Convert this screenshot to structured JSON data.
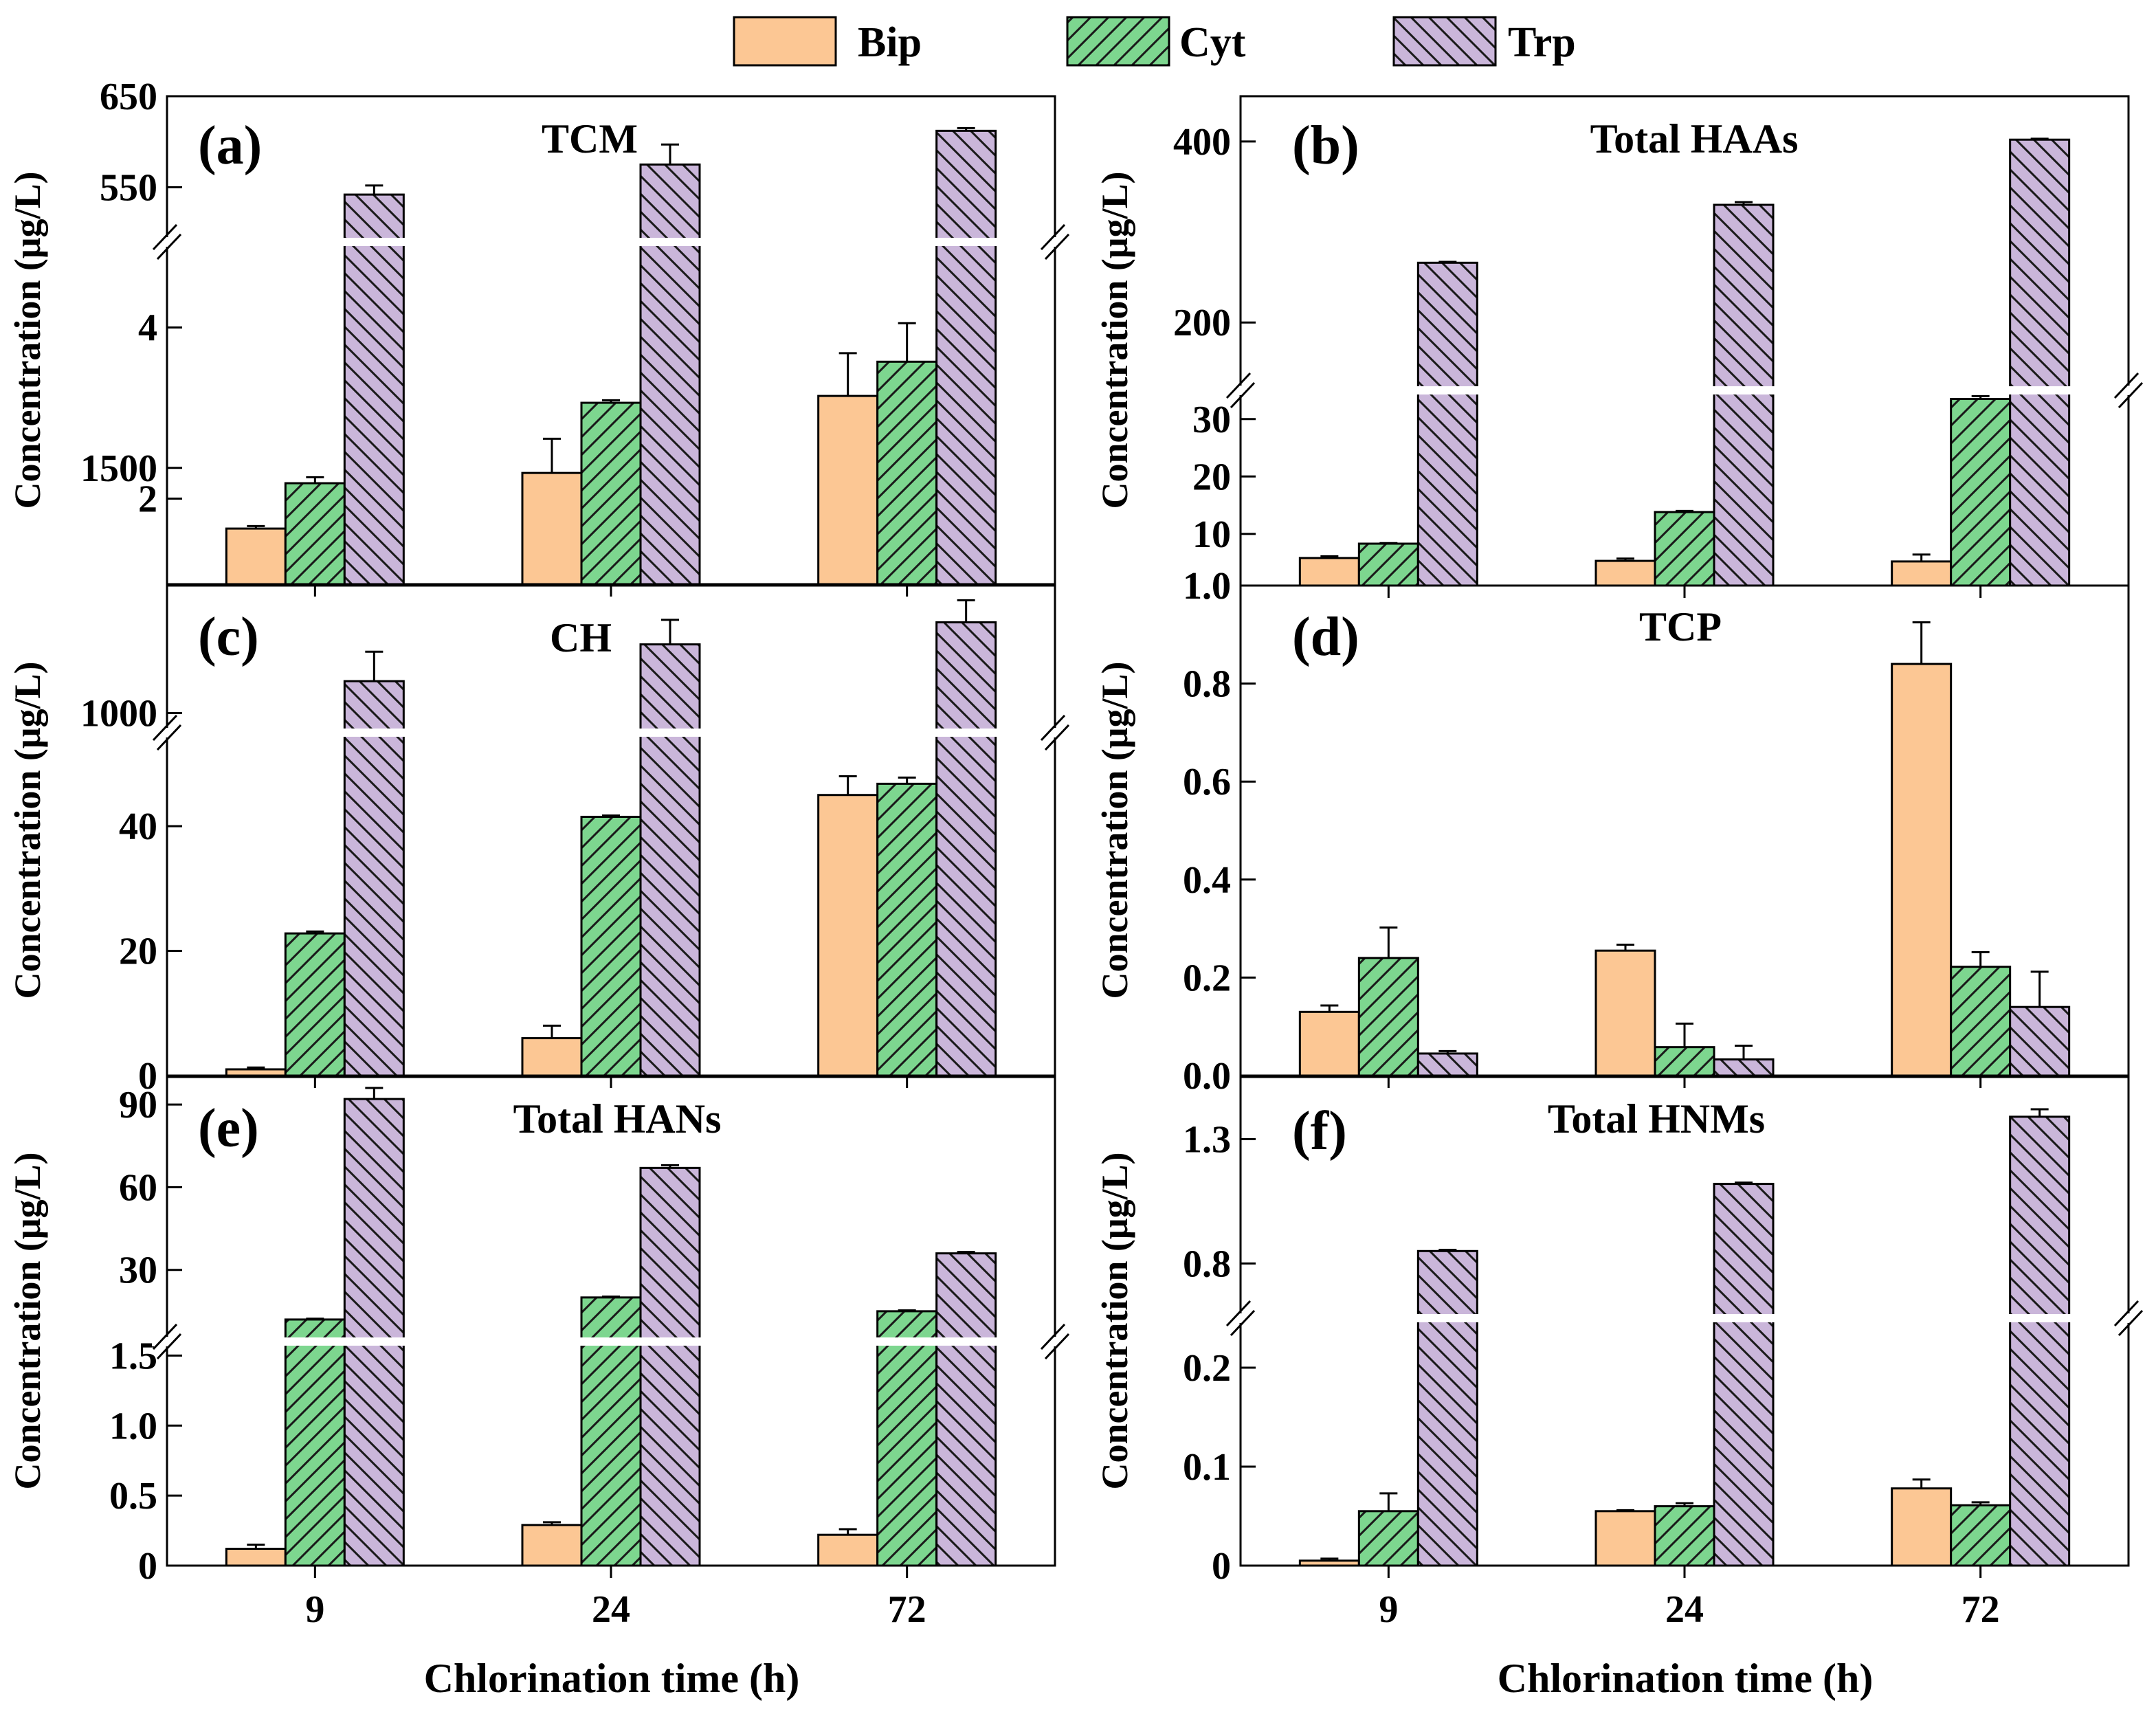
{
  "colors": {
    "Bip": "#FCC794",
    "Cyt": "#7DD68F",
    "Trp": "#CAB6DA",
    "hatch": "#1a1a1a",
    "axis": "#000000"
  },
  "legend": [
    {
      "name": "Bip",
      "pattern": "solid"
    },
    {
      "name": "Cyt",
      "pattern": "forward-hatch"
    },
    {
      "name": "Trp",
      "pattern": "back-hatch"
    }
  ],
  "figure": {
    "xlabel": "Chlorination time (h)",
    "ylabel": "Concentration (μg/L)"
  },
  "chart_data": [
    {
      "id": "a",
      "type": "bar",
      "letter": "(a)",
      "title": "TCM",
      "xlabel": "Chlorination time (h)",
      "ylabel": "Concentration (μg/L)",
      "categories": [
        "9",
        "24",
        "72"
      ],
      "series": [
        {
          "name": "Bip",
          "values": [
            1.65,
            2.3,
            3.2
          ],
          "errors": [
            0.03,
            0.4,
            0.5
          ]
        },
        {
          "name": "Cyt",
          "values": [
            2.18,
            3.12,
            3.6
          ],
          "errors": [
            0.07,
            0.03,
            0.45
          ]
        },
        {
          "name": "Trp",
          "values": [
            542,
            575,
            612
          ],
          "errors": [
            10,
            22,
            3
          ]
        }
      ],
      "axis_break": true,
      "lower_range": [
        1.0,
        5.0
      ],
      "lower_ticks": [
        {
          "v": 2,
          "label": "2"
        },
        {
          "v": 4,
          "label": "4"
        }
      ],
      "upper_range": [
        490,
        650
      ],
      "upper_ticks": [
        {
          "v": 550,
          "label": "550"
        },
        {
          "v": 650,
          "label": "650"
        }
      ]
    },
    {
      "id": "b",
      "type": "bar",
      "letter": "(b)",
      "title": "Total HAAs",
      "xlabel": "Chlorination time (h)",
      "ylabel": "Concentration (μg/L)",
      "categories": [
        "9",
        "24",
        "72"
      ],
      "series": [
        {
          "name": "Bip",
          "values": [
            5.8,
            5.3,
            5.2
          ],
          "errors": [
            0.3,
            0.4,
            1.2
          ]
        },
        {
          "name": "Cyt",
          "values": [
            8.3,
            13.8,
            33.5
          ],
          "errors": [
            0.1,
            0.2,
            0.5
          ]
        },
        {
          "name": "Trp",
          "values": [
            266,
            330,
            402
          ],
          "errors": [
            1,
            3,
            1
          ]
        }
      ],
      "axis_break": true,
      "lower_range": [
        1.0,
        35.0
      ],
      "lower_ticks": [
        {
          "v": 1,
          "label": "1.0"
        },
        {
          "v": 10,
          "label": "10"
        },
        {
          "v": 20,
          "label": "20"
        },
        {
          "v": 30,
          "label": "30"
        }
      ],
      "upper_range": [
        125,
        450
      ],
      "upper_ticks": [
        {
          "v": 200,
          "label": "200"
        },
        {
          "v": 400,
          "label": "400"
        }
      ]
    },
    {
      "id": "c",
      "type": "bar",
      "letter": "(c)",
      "title": "CH",
      "xlabel": "Chlorination time (h)",
      "ylabel": "Concentration (μg/L)",
      "categories": [
        "9",
        "24",
        "72"
      ],
      "series": [
        {
          "name": "Bip",
          "values": [
            1,
            6,
            45
          ],
          "errors": [
            0.3,
            2,
            3
          ]
        },
        {
          "name": "Cyt",
          "values": [
            22.8,
            41.5,
            46.8
          ],
          "errors": [
            0.3,
            0.2,
            1
          ]
        },
        {
          "name": "Trp",
          "values": [
            1065,
            1140,
            1185
          ],
          "errors": [
            60,
            50,
            45
          ]
        }
      ],
      "axis_break": true,
      "lower_range": [
        0,
        55
      ],
      "lower_ticks": [
        {
          "v": 0,
          "label": "0"
        },
        {
          "v": 20,
          "label": "20"
        },
        {
          "v": 40,
          "label": "40"
        }
      ],
      "upper_range": [
        960,
        1260
      ],
      "upper_ticks": [
        {
          "v": 1000,
          "label": "1000"
        },
        {
          "v": 1500,
          "label": "1500"
        }
      ]
    },
    {
      "id": "d",
      "type": "bar",
      "letter": "(d)",
      "title": "TCP",
      "xlabel": "Chlorination time (h)",
      "ylabel": "Concentration (μg/L)",
      "categories": [
        "9",
        "24",
        "72"
      ],
      "series": [
        {
          "name": "Bip",
          "values": [
            0.13,
            0.255,
            0.84
          ],
          "errors": [
            0.013,
            0.012,
            0.085
          ]
        },
        {
          "name": "Cyt",
          "values": [
            0.24,
            0.058,
            0.222
          ],
          "errors": [
            0.062,
            0.048,
            0.03
          ]
        },
        {
          "name": "Trp",
          "values": [
            0.045,
            0.033,
            0.14
          ],
          "errors": [
            0.005,
            0.028,
            0.072
          ]
        }
      ],
      "axis_break": false,
      "ylim": [
        0,
        1.0
      ],
      "ticks": [
        {
          "v": 0,
          "label": "0.0"
        },
        {
          "v": 0.2,
          "label": "0.2"
        },
        {
          "v": 0.4,
          "label": "0.4"
        },
        {
          "v": 0.6,
          "label": "0.6"
        },
        {
          "v": 0.8,
          "label": "0.8"
        },
        {
          "v": 1.0,
          "label": "1.0"
        }
      ]
    },
    {
      "id": "e",
      "type": "bar",
      "letter": "(e)",
      "title": "Total HANs",
      "xlabel": "Chlorination time (h)",
      "ylabel": "Concentration (μg/L)",
      "categories": [
        "9",
        "24",
        "72"
      ],
      "series": [
        {
          "name": "Bip",
          "values": [
            0.12,
            0.29,
            0.22
          ],
          "errors": [
            0.03,
            0.02,
            0.04
          ]
        },
        {
          "name": "Cyt",
          "values": [
            12,
            20,
            15
          ],
          "errors": [
            0.3,
            0.3,
            0.3
          ]
        },
        {
          "name": "Trp",
          "values": [
            92,
            67,
            36
          ],
          "errors": [
            4,
            1,
            0.5
          ]
        }
      ],
      "axis_break": true,
      "lower_range": [
        0,
        1.6
      ],
      "lower_ticks": [
        {
          "v": 0,
          "label": "0"
        },
        {
          "v": 0.5,
          "label": "0.5"
        },
        {
          "v": 1.0,
          "label": "1.0"
        },
        {
          "v": 1.5,
          "label": "1.5"
        }
      ],
      "upper_range": [
        4,
        100
      ],
      "upper_ticks": [
        {
          "v": 30,
          "label": "30"
        },
        {
          "v": 60,
          "label": "60"
        },
        {
          "v": 90,
          "label": "90"
        }
      ]
    },
    {
      "id": "f",
      "type": "bar",
      "letter": "(f)",
      "title": "Total HNMs",
      "xlabel": "Chlorination time (h)",
      "ylabel": "Concentration (μg/L)",
      "categories": [
        "9",
        "24",
        "72"
      ],
      "series": [
        {
          "name": "Bip",
          "values": [
            0.005,
            0.055,
            0.078
          ],
          "errors": [
            0.002,
            0.001,
            0.009
          ]
        },
        {
          "name": "Cyt",
          "values": [
            0.055,
            0.06,
            0.061
          ],
          "errors": [
            0.018,
            0.003,
            0.003
          ]
        },
        {
          "name": "Trp",
          "values": [
            0.85,
            1.12,
            1.39
          ],
          "errors": [
            0.005,
            0.005,
            0.03
          ]
        }
      ],
      "axis_break": true,
      "lower_range": [
        0,
        0.25
      ],
      "lower_ticks": [
        {
          "v": 0,
          "label": "0"
        },
        {
          "v": 0.1,
          "label": "0.1"
        },
        {
          "v": 0.2,
          "label": "0.2"
        }
      ],
      "upper_range": [
        0.58,
        1.55
      ],
      "upper_ticks": [
        {
          "v": 0.8,
          "label": "0.8"
        },
        {
          "v": 1.3,
          "label": "1.3"
        }
      ]
    }
  ]
}
